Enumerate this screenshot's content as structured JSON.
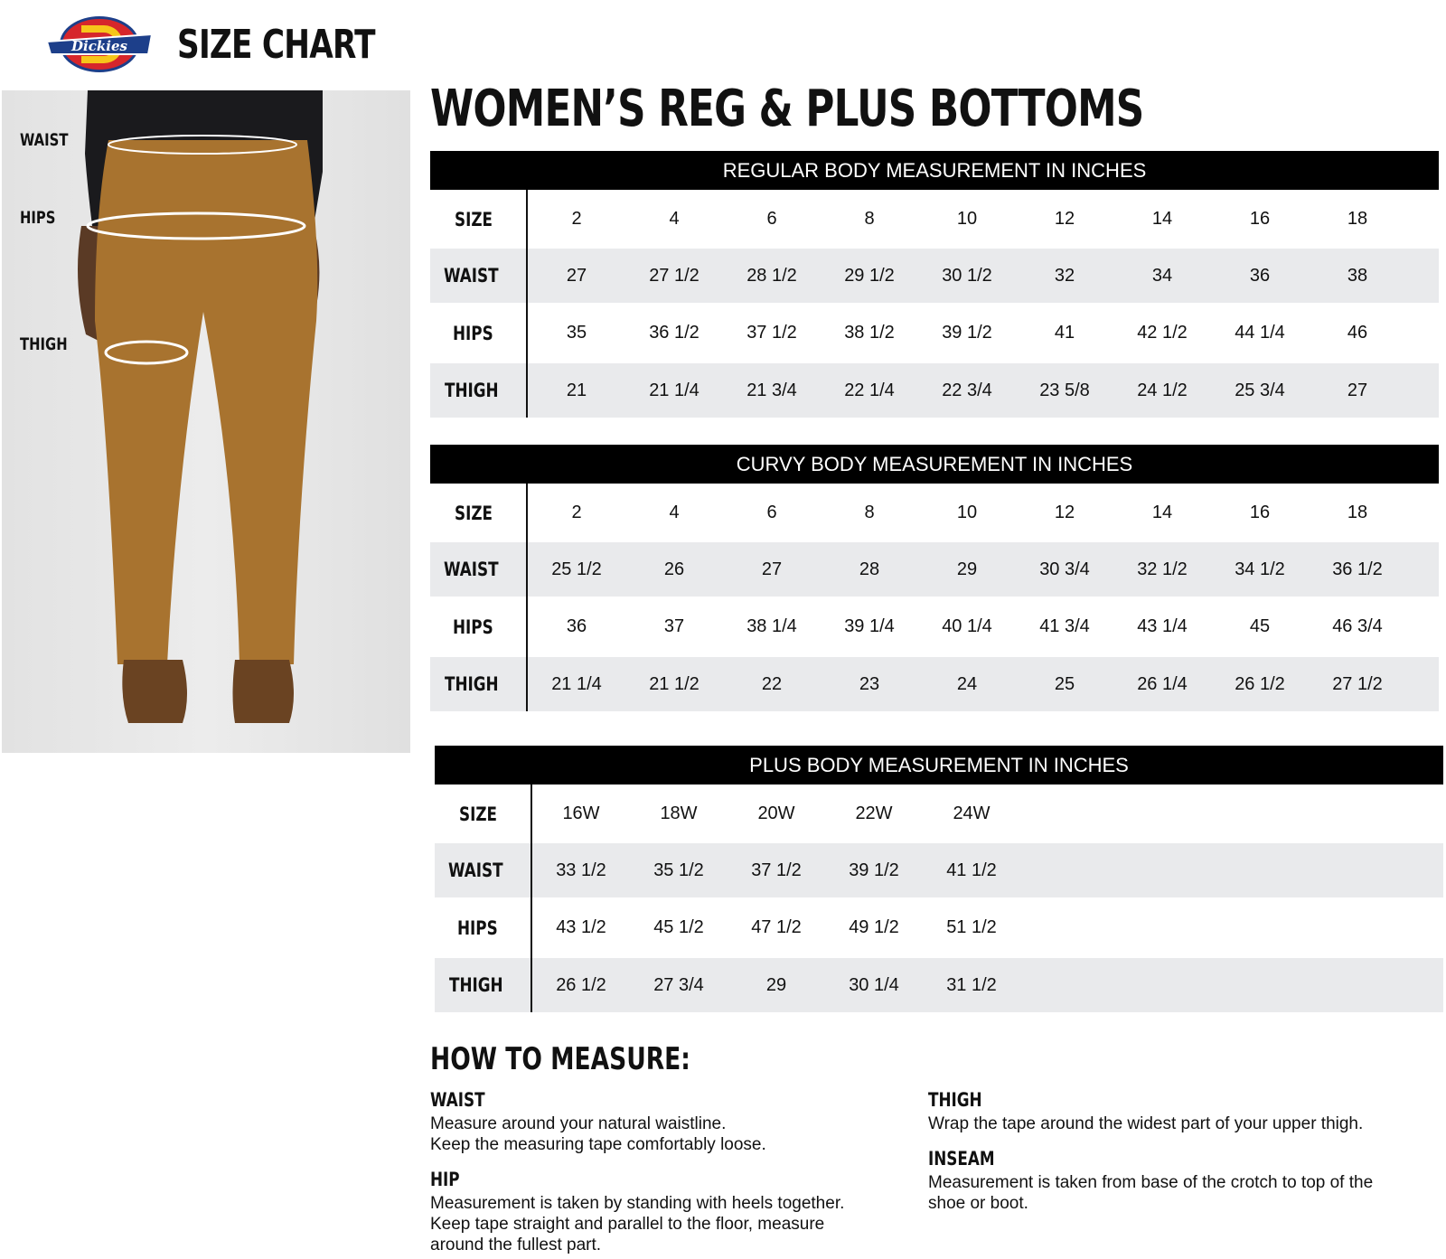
{
  "header": {
    "brand": "Dickies",
    "title": "SIZE CHART"
  },
  "photo": {
    "labels": [
      "WAIST",
      "HIPS",
      "THIGH"
    ]
  },
  "subtitle": "WOMEN’S REG & PLUS BOTTOMS",
  "colors": {
    "header_bg": "#000000",
    "alt_row": "#e9eaec",
    "pants": "#a8732f"
  },
  "tables": [
    {
      "title": "REGULAR BODY MEASUREMENT IN INCHES",
      "rows": [
        {
          "label": "SIZE",
          "values": [
            "2",
            "4",
            "6",
            "8",
            "10",
            "12",
            "14",
            "16",
            "18"
          ]
        },
        {
          "label": "WAIST",
          "values": [
            "27",
            "27 1/2",
            "28 1/2",
            "29 1/2",
            "30 1/2",
            "32",
            "34",
            "36",
            "38"
          ]
        },
        {
          "label": "HIPS",
          "values": [
            "35",
            "36 1/2",
            "37 1/2",
            "38 1/2",
            "39 1/2",
            "41",
            "42 1/2",
            "44 1/4",
            "46"
          ]
        },
        {
          "label": "THIGH",
          "values": [
            "21",
            "21 1/4",
            "21 3/4",
            "22 1/4",
            "22 3/4",
            "23 5/8",
            "24 1/2",
            "25 3/4",
            "27"
          ]
        }
      ]
    },
    {
      "title": "CURVY BODY MEASUREMENT IN INCHES",
      "rows": [
        {
          "label": "SIZE",
          "values": [
            "2",
            "4",
            "6",
            "8",
            "10",
            "12",
            "14",
            "16",
            "18"
          ]
        },
        {
          "label": "WAIST",
          "values": [
            "25 1/2",
            "26",
            "27",
            "28",
            "29",
            "30 3/4",
            "32 1/2",
            "34 1/2",
            "36 1/2"
          ]
        },
        {
          "label": "HIPS",
          "values": [
            "36",
            "37",
            "38 1/4",
            "39 1/4",
            "40 1/4",
            "41 3/4",
            "43 1/4",
            "45",
            "46 3/4"
          ]
        },
        {
          "label": "THIGH",
          "values": [
            "21 1/4",
            "21 1/2",
            "22",
            "23",
            "24",
            "25",
            "26 1/4",
            "26 1/2",
            "27 1/2"
          ]
        }
      ]
    },
    {
      "title": "PLUS BODY MEASUREMENT IN INCHES",
      "rows": [
        {
          "label": "SIZE",
          "values": [
            "16W",
            "18W",
            "20W",
            "22W",
            "24W"
          ]
        },
        {
          "label": "WAIST",
          "values": [
            "33 1/2",
            "35 1/2",
            "37 1/2",
            "39 1/2",
            "41 1/2"
          ]
        },
        {
          "label": "HIPS",
          "values": [
            "43 1/2",
            "45 1/2",
            "47 1/2",
            "49 1/2",
            "51 1/2"
          ]
        },
        {
          "label": "THIGH",
          "values": [
            "26 1/2",
            "27 3/4",
            "29",
            "30 1/4",
            "31 1/2"
          ]
        }
      ]
    }
  ],
  "how_to": {
    "title": "HOW TO MEASURE:",
    "items": [
      {
        "heading": "WAIST",
        "text": "Measure around your natural waistline.\nKeep the measuring tape comfortably loose."
      },
      {
        "heading": "HIP",
        "text": "Measurement is taken by standing with heels together.\nKeep tape straight and parallel to the floor, measure\naround the fullest part."
      },
      {
        "heading": "THIGH",
        "text": "Wrap the tape around the widest part of your upper thigh."
      },
      {
        "heading": "INSEAM",
        "text": "Measurement is taken from base of the crotch to top of the\nshoe or boot."
      }
    ]
  }
}
